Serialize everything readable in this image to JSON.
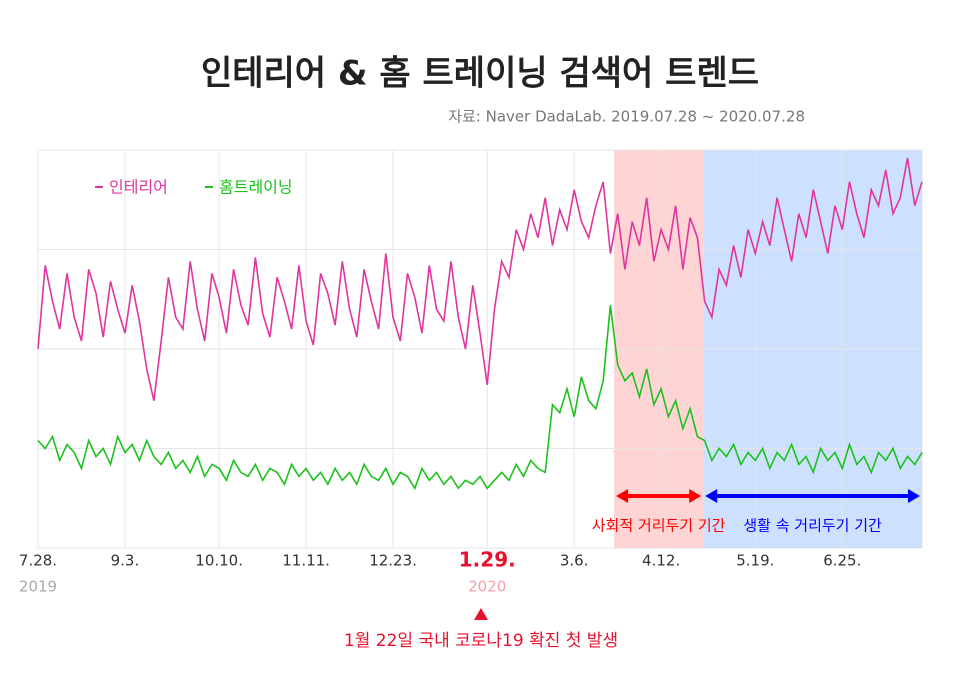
{
  "chart_data": {
    "type": "line",
    "title": "인테리어 & 홈 트레이닝 검색어 트렌드",
    "subtitle": "자료: Naver DadaLab. 2019.07.28 ~ 2020.07.28",
    "categories": [
      "7.28.",
      null,
      null,
      null,
      null,
      null,
      null,
      null,
      null,
      null,
      null,
      null,
      "9.3.",
      null,
      null,
      null,
      null,
      null,
      null,
      null,
      null,
      null,
      null,
      null,
      null,
      "10.10.",
      null,
      null,
      null,
      null,
      null,
      null,
      null,
      null,
      null,
      null,
      null,
      "11.11.",
      null,
      null,
      null,
      null,
      null,
      null,
      null,
      null,
      null,
      null,
      null,
      "12.23.",
      null,
      null,
      null,
      null,
      null,
      null,
      null,
      null,
      null,
      null,
      null,
      null,
      "1.29.",
      null,
      null,
      null,
      null,
      null,
      null,
      null,
      null,
      null,
      null,
      null,
      "3.6.",
      null,
      null,
      null,
      null,
      null,
      null,
      null,
      null,
      null,
      null,
      null,
      "4.12.",
      null,
      null,
      null,
      null,
      null,
      null,
      null,
      null,
      null,
      null,
      null,
      null,
      "5.19.",
      null,
      null,
      null,
      null,
      null,
      null,
      null,
      null,
      null,
      null,
      null,
      "6.25.",
      null,
      null,
      null,
      null,
      null,
      null,
      null,
      null,
      null,
      null,
      null
    ],
    "category_years": [
      "2019",
      null,
      null,
      null,
      null,
      null,
      null,
      null,
      null,
      null,
      null,
      null,
      null,
      null,
      null,
      null,
      null,
      null,
      null,
      null,
      null,
      null,
      null,
      null,
      null,
      null,
      null,
      null,
      null,
      null,
      null,
      null,
      null,
      null,
      null,
      null,
      null,
      null,
      null,
      null,
      null,
      null,
      null,
      null,
      null,
      null,
      null,
      null,
      null,
      null,
      null,
      null,
      null,
      null,
      null,
      null,
      null,
      null,
      null,
      null,
      null,
      null,
      "2020",
      null,
      null,
      null,
      null,
      null,
      null,
      null,
      null,
      null,
      null,
      null,
      null,
      null,
      null,
      null,
      null,
      null,
      null,
      null,
      null,
      null,
      null,
      null,
      null,
      null,
      null,
      null,
      null,
      null,
      null,
      null,
      null,
      null,
      null,
      null,
      null,
      null,
      null,
      null,
      null,
      null,
      null,
      null,
      null,
      null,
      null,
      null,
      null,
      null,
      null,
      null,
      null,
      null,
      null,
      null,
      null,
      null,
      null
    ],
    "highlight": {
      "category": "1.29.",
      "color": "#e8112d"
    },
    "series": [
      {
        "name": "인테리어",
        "color": "#e0359e",
        "values": [
          50,
          71,
          62,
          55,
          69,
          58,
          52,
          70,
          64,
          53,
          67,
          60,
          54,
          66,
          57,
          45,
          37,
          52,
          68,
          58,
          55,
          72,
          60,
          52,
          69,
          63,
          54,
          70,
          61,
          56,
          73,
          59,
          53,
          68,
          62,
          55,
          71,
          57,
          51,
          69,
          64,
          56,
          72,
          60,
          53,
          70,
          62,
          55,
          74,
          58,
          52,
          69,
          63,
          54,
          71,
          60,
          57,
          72,
          58,
          50,
          66,
          54,
          41,
          60,
          72,
          68,
          80,
          75,
          84,
          78,
          88,
          76,
          85,
          80,
          90,
          82,
          78,
          86,
          92,
          74,
          84,
          70,
          82,
          76,
          88,
          72,
          80,
          75,
          86,
          70,
          83,
          78,
          62,
          58,
          70,
          66,
          76,
          68,
          80,
          74,
          82,
          76,
          88,
          80,
          72,
          84,
          78,
          90,
          82,
          74,
          86,
          80,
          92,
          84,
          78,
          90,
          86,
          95,
          84,
          88,
          98,
          86,
          92
        ]
      },
      {
        "name": "홈트레이닝",
        "color": "#1cc21c",
        "values": [
          27,
          25,
          28,
          22,
          26,
          24,
          20,
          27,
          23,
          25,
          21,
          28,
          24,
          26,
          22,
          27,
          23,
          21,
          24,
          20,
          22,
          19,
          23,
          18,
          21,
          20,
          17,
          22,
          19,
          18,
          21,
          17,
          20,
          19,
          16,
          21,
          18,
          20,
          17,
          19,
          16,
          20,
          17,
          19,
          16,
          21,
          18,
          17,
          20,
          16,
          19,
          18,
          15,
          20,
          17,
          19,
          16,
          18,
          15,
          17,
          16,
          18,
          15,
          17,
          19,
          17,
          21,
          18,
          22,
          20,
          19,
          36,
          34,
          40,
          33,
          43,
          37,
          35,
          42,
          61,
          46,
          42,
          44,
          38,
          45,
          36,
          40,
          33,
          37,
          30,
          35,
          28,
          27,
          22,
          25,
          23,
          26,
          21,
          24,
          22,
          25,
          20,
          24,
          22,
          26,
          21,
          23,
          19,
          25,
          22,
          24,
          20,
          26,
          21,
          23,
          19,
          24,
          22,
          25,
          20,
          23,
          21,
          24
        ]
      }
    ],
    "periods": [
      {
        "label": "사회적 거리두기 기간",
        "from": 79.5,
        "to": 91.8,
        "color": "#ffcccc",
        "arrow_color": "#ff0000"
      },
      {
        "label": "생활 속 거리두기 기간",
        "from": 91.8,
        "to": 122,
        "color": "#c4dcff",
        "arrow_color": "#0000ff"
      }
    ],
    "annotation": "1월 22일 국내 코로나19 확진 첫 발생",
    "ylim": [
      0,
      100
    ],
    "yticks": [
      25,
      50,
      75,
      100
    ],
    "grid": true
  }
}
